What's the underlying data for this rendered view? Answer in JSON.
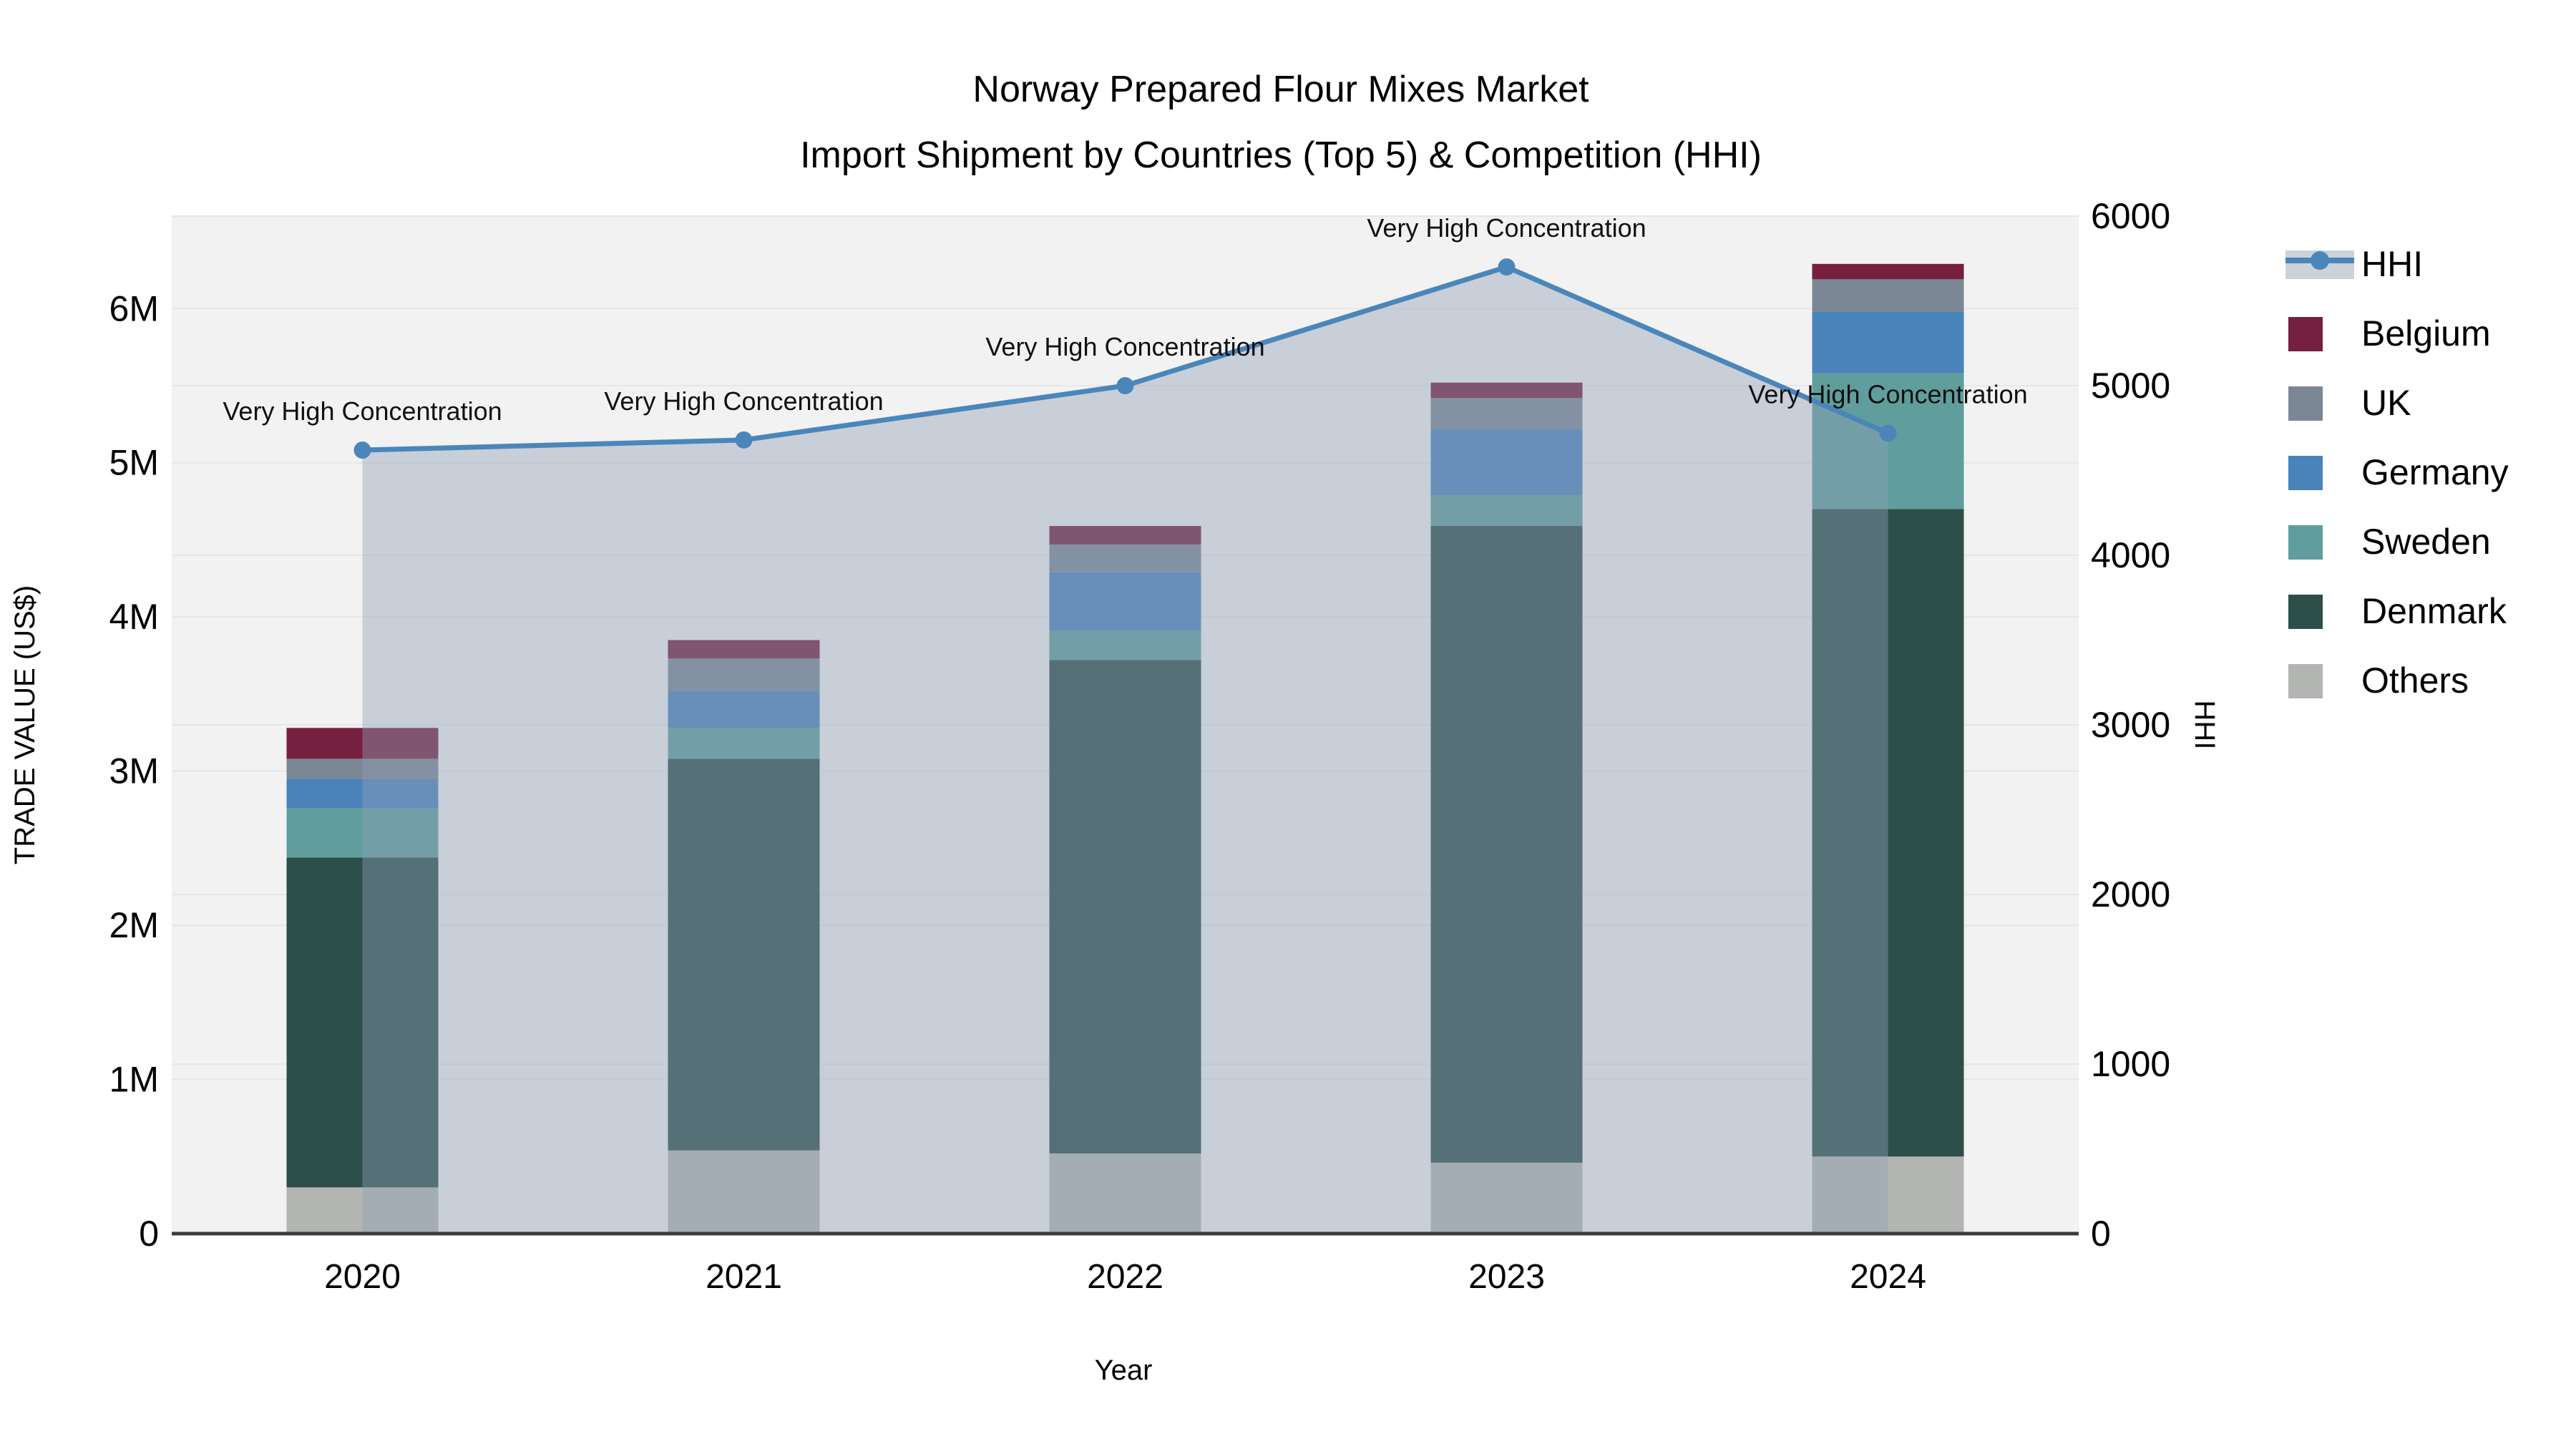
{
  "chart_data": {
    "type": "bar+line",
    "title": "Norway Prepared Flour Mixes Market",
    "subtitle": "Import Shipment by Countries (Top 5) & Competition (HHI)",
    "xlabel": "Year",
    "ylabel_left": "TRADE VALUE (US$)",
    "ylabel_right": "HHI",
    "categories": [
      "2020",
      "2021",
      "2022",
      "2023",
      "2024"
    ],
    "bar_unit": "millions of US$",
    "series": [
      {
        "name": "Others",
        "color": "#b3b5b2",
        "values": [
          0.3,
          0.54,
          0.52,
          0.46,
          0.5
        ]
      },
      {
        "name": "Denmark",
        "color": "#2d4f4a",
        "values": [
          2.14,
          2.54,
          3.2,
          4.13,
          4.2
        ]
      },
      {
        "name": "Sweden",
        "color": "#5f9e9d",
        "values": [
          0.32,
          0.2,
          0.19,
          0.2,
          0.88
        ]
      },
      {
        "name": "Germany",
        "color": "#4a83ba",
        "values": [
          0.19,
          0.24,
          0.38,
          0.43,
          0.4
        ]
      },
      {
        "name": "UK",
        "color": "#7c8795",
        "values": [
          0.13,
          0.21,
          0.18,
          0.2,
          0.21
        ]
      },
      {
        "name": "Belgium",
        "color": "#75203f",
        "values": [
          0.2,
          0.12,
          0.12,
          0.1,
          0.1
        ]
      }
    ],
    "bar_totals_m": [
      3.28,
      3.85,
      4.59,
      5.52,
      6.29
    ],
    "line_series": {
      "name": "HHI",
      "color": "#4a86ba",
      "area_color": "#8ea0b8",
      "values": [
        4620,
        4680,
        5000,
        5700,
        4720
      ]
    },
    "annotations": [
      "Very High Concentration",
      "Very High Concentration",
      "Very High Concentration",
      "Very High Concentration",
      "Very High Concentration"
    ],
    "y_left": {
      "ticks": [
        "0",
        "1M",
        "2M",
        "3M",
        "4M",
        "5M",
        "6M"
      ],
      "tick_step_m": 1,
      "max_m": 6.6
    },
    "y_right": {
      "ticks": [
        "0",
        "1000",
        "2000",
        "3000",
        "4000",
        "5000",
        "6000"
      ],
      "tick_step": 1000,
      "max": 6000
    },
    "legend_order": [
      "HHI",
      "Belgium",
      "UK",
      "Germany",
      "Sweden",
      "Denmark",
      "Others"
    ],
    "grid": true,
    "legend_position": "right"
  },
  "colors": {
    "plot_bg": "#f2f2f2",
    "grid": "#e7e7e7",
    "axis_line": "#3c3c3c",
    "legend_area_swatch": "#ccd2da"
  }
}
